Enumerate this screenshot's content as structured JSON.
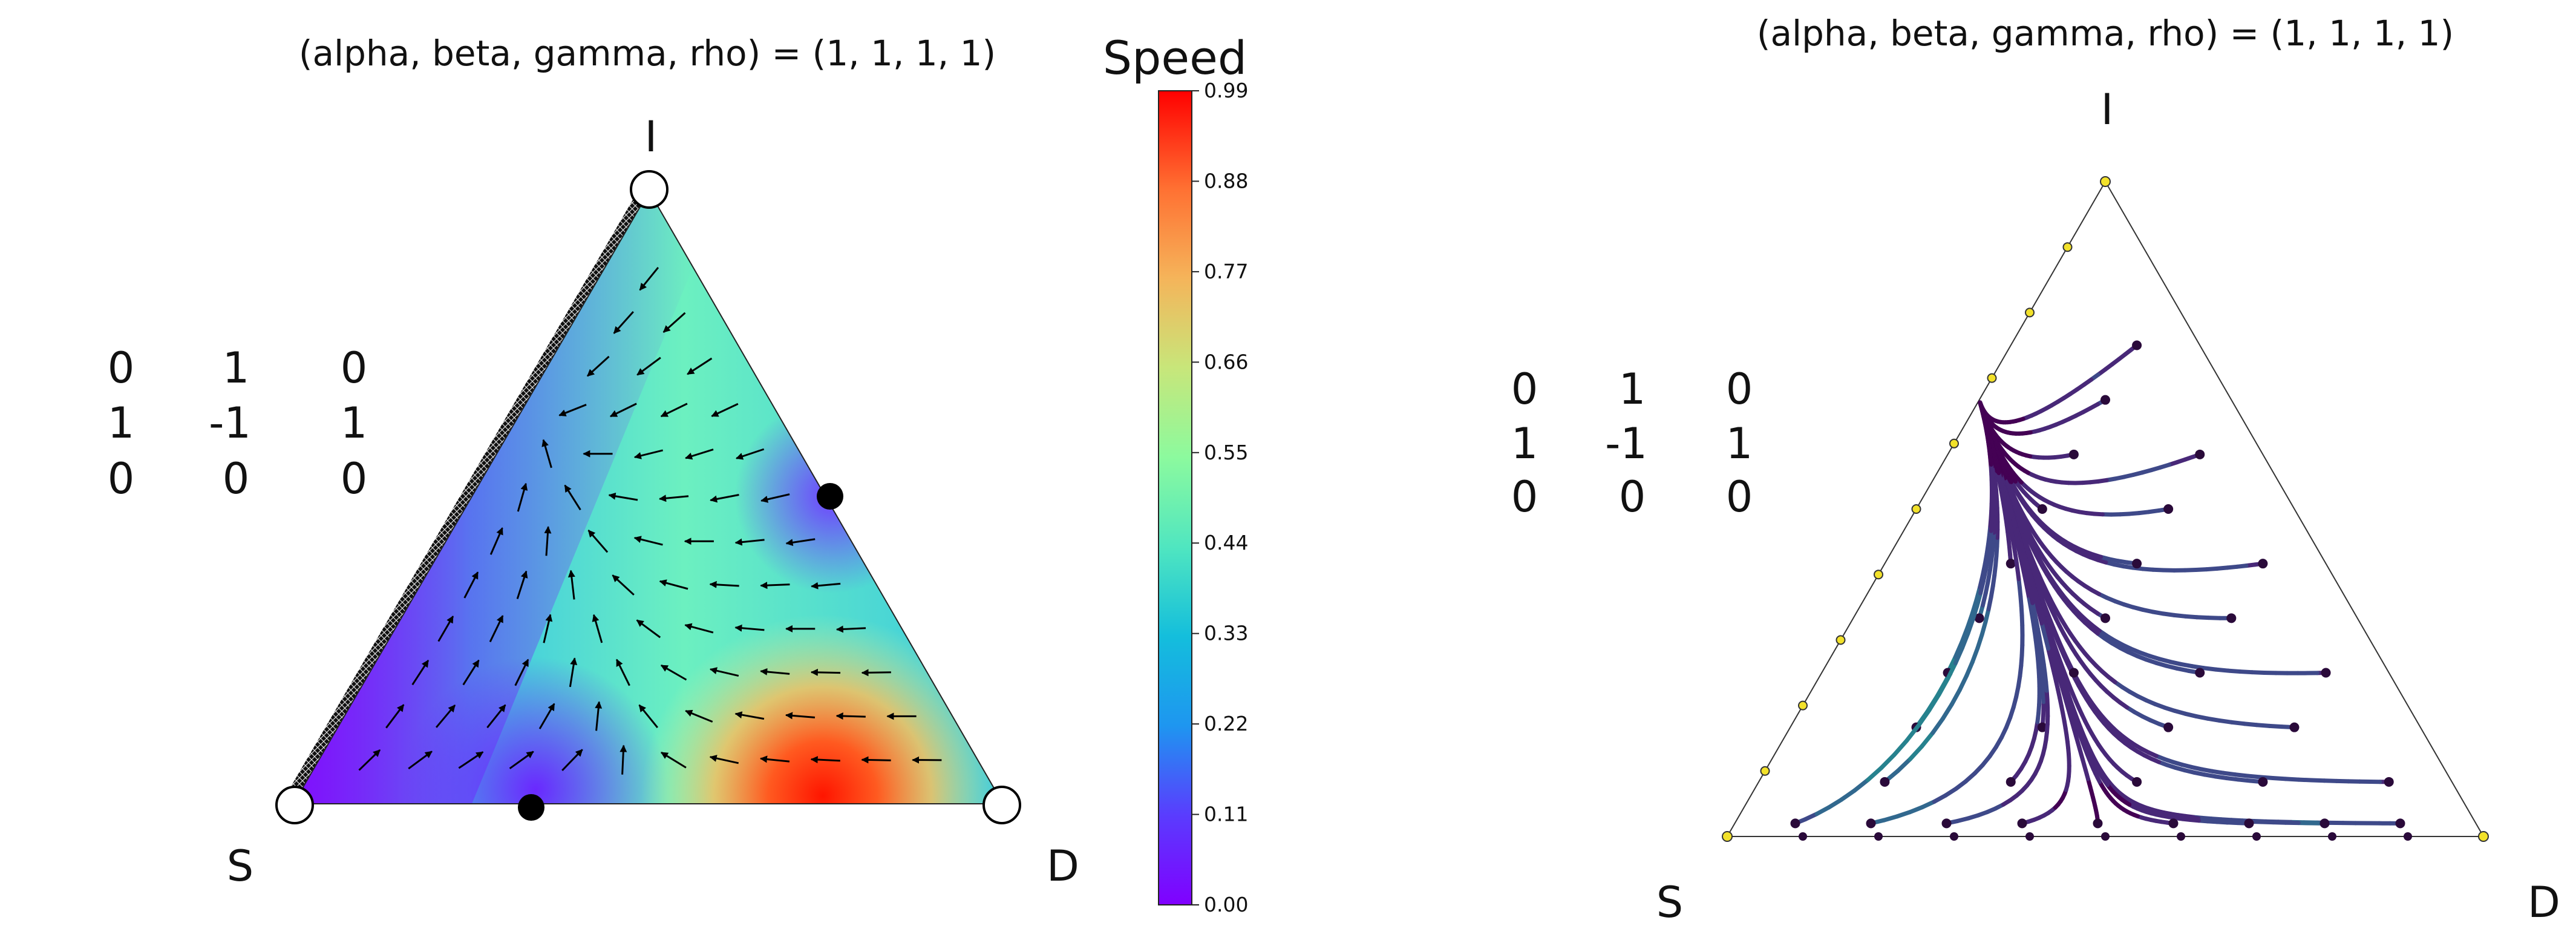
{
  "chart_data": [
    {
      "type": "simplex-vector-field",
      "title": "(alpha, beta, gamma, rho) = (1, 1, 1, 1)",
      "vertices": [
        "I",
        "S",
        "D"
      ],
      "payoff_matrix": [
        [
          "0",
          "1",
          "0"
        ],
        [
          "1",
          "-1",
          "1"
        ],
        [
          "0",
          "0",
          "0"
        ]
      ],
      "colorbar": {
        "title": "Speed",
        "range": [
          0,
          0.99
        ],
        "ticks": [
          "0.00",
          "0.11",
          "0.22",
          "0.33",
          "0.44",
          "0.55",
          "0.66",
          "0.77",
          "0.88",
          "0.99"
        ],
        "colormap": "rainbow"
      }
    },
    {
      "type": "simplex-trajectories",
      "title": "(alpha, beta, gamma, rho) = (1, 1, 1, 1)",
      "vertices": [
        "I",
        "S",
        "D"
      ],
      "payoff_matrix": [
        [
          "0",
          "1",
          "0"
        ],
        [
          "1",
          "-1",
          "1"
        ],
        [
          "0",
          "0",
          "0"
        ]
      ],
      "colormap": "viridis"
    }
  ]
}
